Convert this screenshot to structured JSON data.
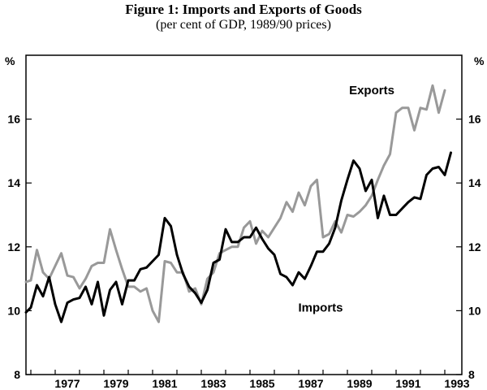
{
  "chart_data": {
    "type": "line",
    "title": "Figure 1: Imports and Exports of Goods",
    "subtitle": "(per cent of GDP, 1989/90 prices)",
    "ylabel_left": "%",
    "ylabel_right": "%",
    "xlim": [
      1975.8,
      1993.7
    ],
    "ylim": [
      8,
      18
    ],
    "yticks": [
      8,
      10,
      12,
      14,
      16
    ],
    "xticks": [
      1977,
      1979,
      1981,
      1983,
      1985,
      1987,
      1989,
      1991,
      1993
    ],
    "grid": false,
    "legend": "inline labels",
    "series": [
      {
        "name": "Exports",
        "color": "#999999",
        "values": [
          [
            1975.8,
            10.9
          ],
          [
            1976.0,
            10.95
          ],
          [
            1976.25,
            11.9
          ],
          [
            1976.5,
            11.2
          ],
          [
            1976.75,
            11.0
          ],
          [
            1977.0,
            11.4
          ],
          [
            1977.25,
            11.8
          ],
          [
            1977.5,
            11.1
          ],
          [
            1977.75,
            11.05
          ],
          [
            1978.0,
            10.7
          ],
          [
            1978.25,
            11.0
          ],
          [
            1978.5,
            11.4
          ],
          [
            1978.75,
            11.5
          ],
          [
            1979.0,
            11.5
          ],
          [
            1979.25,
            12.55
          ],
          [
            1979.5,
            11.9
          ],
          [
            1979.75,
            11.3
          ],
          [
            1980.0,
            10.75
          ],
          [
            1980.25,
            10.75
          ],
          [
            1980.5,
            10.6
          ],
          [
            1980.75,
            10.7
          ],
          [
            1981.0,
            10.0
          ],
          [
            1981.25,
            9.65
          ],
          [
            1981.5,
            11.55
          ],
          [
            1981.75,
            11.5
          ],
          [
            1982.0,
            11.2
          ],
          [
            1982.25,
            11.2
          ],
          [
            1982.5,
            10.6
          ],
          [
            1982.75,
            10.7
          ],
          [
            1983.0,
            10.2
          ],
          [
            1983.25,
            11.0
          ],
          [
            1983.5,
            11.2
          ],
          [
            1983.75,
            11.8
          ],
          [
            1984.0,
            11.9
          ],
          [
            1984.25,
            12.0
          ],
          [
            1984.5,
            12.0
          ],
          [
            1984.75,
            12.6
          ],
          [
            1985.0,
            12.8
          ],
          [
            1985.25,
            12.1
          ],
          [
            1985.5,
            12.5
          ],
          [
            1985.75,
            12.3
          ],
          [
            1986.0,
            12.6
          ],
          [
            1986.25,
            12.9
          ],
          [
            1986.5,
            13.4
          ],
          [
            1986.75,
            13.1
          ],
          [
            1987.0,
            13.7
          ],
          [
            1987.25,
            13.3
          ],
          [
            1987.5,
            13.9
          ],
          [
            1987.75,
            14.1
          ],
          [
            1988.0,
            12.3
          ],
          [
            1988.25,
            12.4
          ],
          [
            1988.5,
            12.8
          ],
          [
            1988.75,
            12.45
          ],
          [
            1989.0,
            13.0
          ],
          [
            1989.25,
            12.95
          ],
          [
            1989.5,
            13.1
          ],
          [
            1989.75,
            13.3
          ],
          [
            1990.0,
            13.6
          ],
          [
            1990.25,
            14.1
          ],
          [
            1990.5,
            14.55
          ],
          [
            1990.75,
            14.9
          ],
          [
            1991.0,
            16.2
          ],
          [
            1991.25,
            16.35
          ],
          [
            1991.5,
            16.35
          ],
          [
            1991.75,
            15.65
          ],
          [
            1992.0,
            16.35
          ],
          [
            1992.25,
            16.3
          ],
          [
            1992.5,
            17.05
          ],
          [
            1992.75,
            16.2
          ],
          [
            1993.0,
            16.9
          ]
        ]
      },
      {
        "name": "Imports",
        "color": "#000000",
        "values": [
          [
            1975.8,
            9.95
          ],
          [
            1976.0,
            10.1
          ],
          [
            1976.25,
            10.8
          ],
          [
            1976.5,
            10.45
          ],
          [
            1976.75,
            11.05
          ],
          [
            1977.0,
            10.2
          ],
          [
            1977.25,
            9.65
          ],
          [
            1977.5,
            10.25
          ],
          [
            1977.75,
            10.35
          ],
          [
            1978.0,
            10.4
          ],
          [
            1978.25,
            10.75
          ],
          [
            1978.5,
            10.2
          ],
          [
            1978.75,
            10.9
          ],
          [
            1979.0,
            9.85
          ],
          [
            1979.25,
            10.65
          ],
          [
            1979.5,
            10.9
          ],
          [
            1979.75,
            10.2
          ],
          [
            1980.0,
            10.95
          ],
          [
            1980.25,
            10.95
          ],
          [
            1980.5,
            11.3
          ],
          [
            1980.75,
            11.35
          ],
          [
            1981.0,
            11.55
          ],
          [
            1981.25,
            11.75
          ],
          [
            1981.5,
            12.9
          ],
          [
            1981.75,
            12.65
          ],
          [
            1982.0,
            11.75
          ],
          [
            1982.25,
            11.15
          ],
          [
            1982.5,
            10.75
          ],
          [
            1982.75,
            10.55
          ],
          [
            1983.0,
            10.25
          ],
          [
            1983.25,
            10.65
          ],
          [
            1983.5,
            11.5
          ],
          [
            1983.75,
            11.6
          ],
          [
            1984.0,
            12.55
          ],
          [
            1984.25,
            12.15
          ],
          [
            1984.5,
            12.15
          ],
          [
            1984.75,
            12.3
          ],
          [
            1985.0,
            12.3
          ],
          [
            1985.25,
            12.6
          ],
          [
            1985.5,
            12.25
          ],
          [
            1985.75,
            11.95
          ],
          [
            1986.0,
            11.75
          ],
          [
            1986.25,
            11.15
          ],
          [
            1986.5,
            11.05
          ],
          [
            1986.75,
            10.8
          ],
          [
            1987.0,
            11.2
          ],
          [
            1987.25,
            11.0
          ],
          [
            1987.5,
            11.4
          ],
          [
            1987.75,
            11.85
          ],
          [
            1988.0,
            11.85
          ],
          [
            1988.25,
            12.1
          ],
          [
            1988.5,
            12.6
          ],
          [
            1988.75,
            13.45
          ],
          [
            1989.0,
            14.1
          ],
          [
            1989.25,
            14.7
          ],
          [
            1989.5,
            14.45
          ],
          [
            1989.75,
            13.75
          ],
          [
            1990.0,
            14.1
          ],
          [
            1990.25,
            12.9
          ],
          [
            1990.5,
            13.6
          ],
          [
            1990.75,
            13.0
          ],
          [
            1991.0,
            13.0
          ],
          [
            1991.25,
            13.2
          ],
          [
            1991.5,
            13.4
          ],
          [
            1991.75,
            13.55
          ],
          [
            1992.0,
            13.5
          ],
          [
            1992.25,
            14.25
          ],
          [
            1992.5,
            14.45
          ],
          [
            1992.75,
            14.5
          ],
          [
            1993.0,
            14.25
          ],
          [
            1993.25,
            14.95
          ]
        ]
      }
    ],
    "annotations": [
      {
        "text": "Exports",
        "series": "Exports",
        "x": 1990.0,
        "y": 16.9
      },
      {
        "text": "Imports",
        "series": "Imports",
        "x": 1987.9,
        "y": 10.1
      }
    ]
  }
}
